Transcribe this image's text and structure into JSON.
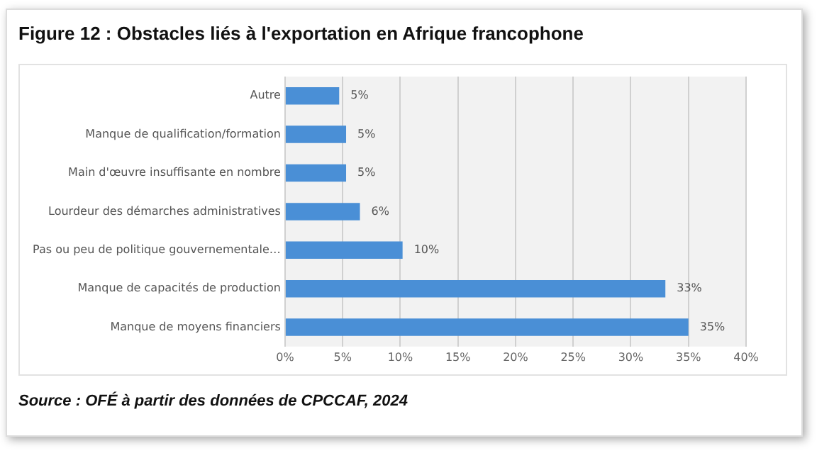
{
  "chart_data": {
    "type": "bar",
    "orientation": "horizontal",
    "title": "Figure 12 : Obstacles liés à l'exportation en Afrique francophone",
    "categories": [
      "Autre",
      "Manque de qualification/formation",
      "Main d'œuvre insuffisante en nombre",
      "Lourdeur des démarches administratives",
      "Pas ou peu de politique gouvernementale…",
      "Manque de capacités de production",
      "Manque de moyens financiers"
    ],
    "values": [
      4.7,
      5.3,
      5.3,
      6.5,
      10.2,
      33,
      35
    ],
    "color": "#4a8fd6",
    "value_labels": [
      "5%",
      "5%",
      "5%",
      "6%",
      "10%",
      "33%",
      "35%"
    ],
    "xlim": [
      0,
      40
    ],
    "xticks": [
      {
        "value": 0,
        "label": "0%"
      },
      {
        "value": 5,
        "label": "5%"
      },
      {
        "value": 10,
        "label": "10%"
      },
      {
        "value": 15,
        "label": "15%"
      },
      {
        "value": 20,
        "label": "20%"
      },
      {
        "value": 25,
        "label": "25%"
      },
      {
        "value": 30,
        "label": "30%"
      },
      {
        "value": 35,
        "label": "35%"
      },
      {
        "value": 40,
        "label": "40%"
      }
    ],
    "grid": "x",
    "legend": false,
    "annotations": [
      "Source : OFÉ à partir des données de CPCCAF, 2024"
    ]
  }
}
